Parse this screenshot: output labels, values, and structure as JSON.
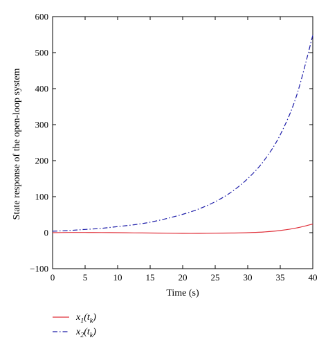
{
  "chart_data": {
    "type": "line",
    "xlabel": "Time (s)",
    "ylabel": "State response of the open-loop system",
    "xlim": [
      0,
      40
    ],
    "ylim": [
      -100,
      600
    ],
    "xticks": [
      0,
      5,
      10,
      15,
      20,
      25,
      30,
      35,
      40
    ],
    "yticks": [
      -100,
      0,
      100,
      200,
      300,
      400,
      500,
      600
    ],
    "xtick_labels": [
      "0",
      "5",
      "10",
      "15",
      "20",
      "25",
      "30",
      "35",
      "40"
    ],
    "ytick_labels": [
      "−100",
      "0",
      "100",
      "200",
      "300",
      "400",
      "500",
      "600"
    ],
    "grid": false,
    "legend_position": "below plot, bottom-left",
    "series": [
      {
        "name": "x1(tk)",
        "legend_main": "x",
        "legend_sub1": "1",
        "legend_paren": "(t",
        "legend_sub2": "k",
        "legend_close": ")",
        "color": "#e0303a",
        "style": "solid",
        "x": [
          0,
          2.5,
          5,
          7.5,
          10,
          12.5,
          15,
          17.5,
          20,
          22.5,
          25,
          27.5,
          30,
          32.5,
          35,
          37.5,
          40
        ],
        "y": [
          0,
          0.5,
          0.5,
          0.3,
          0,
          -0.5,
          -1,
          -1.5,
          -2,
          -2,
          -1.5,
          -1,
          0,
          2,
          6,
          13,
          24
        ]
      },
      {
        "name": "x2(tk)",
        "legend_main": "x",
        "legend_sub1": "2",
        "legend_paren": "(t",
        "legend_sub2": "k",
        "legend_close": ")",
        "color": "#1c1ca8",
        "style": "dash-dot",
        "x": [
          0,
          2.5,
          5,
          7.5,
          10,
          12.5,
          15,
          17.5,
          20,
          22.5,
          25,
          27.5,
          30,
          32.5,
          35,
          37.5,
          40
        ],
        "y": [
          4,
          6,
          9,
          12,
          17,
          22,
          29,
          39,
          51,
          66,
          86,
          113,
          150,
          200,
          272,
          380,
          548
        ]
      }
    ]
  }
}
